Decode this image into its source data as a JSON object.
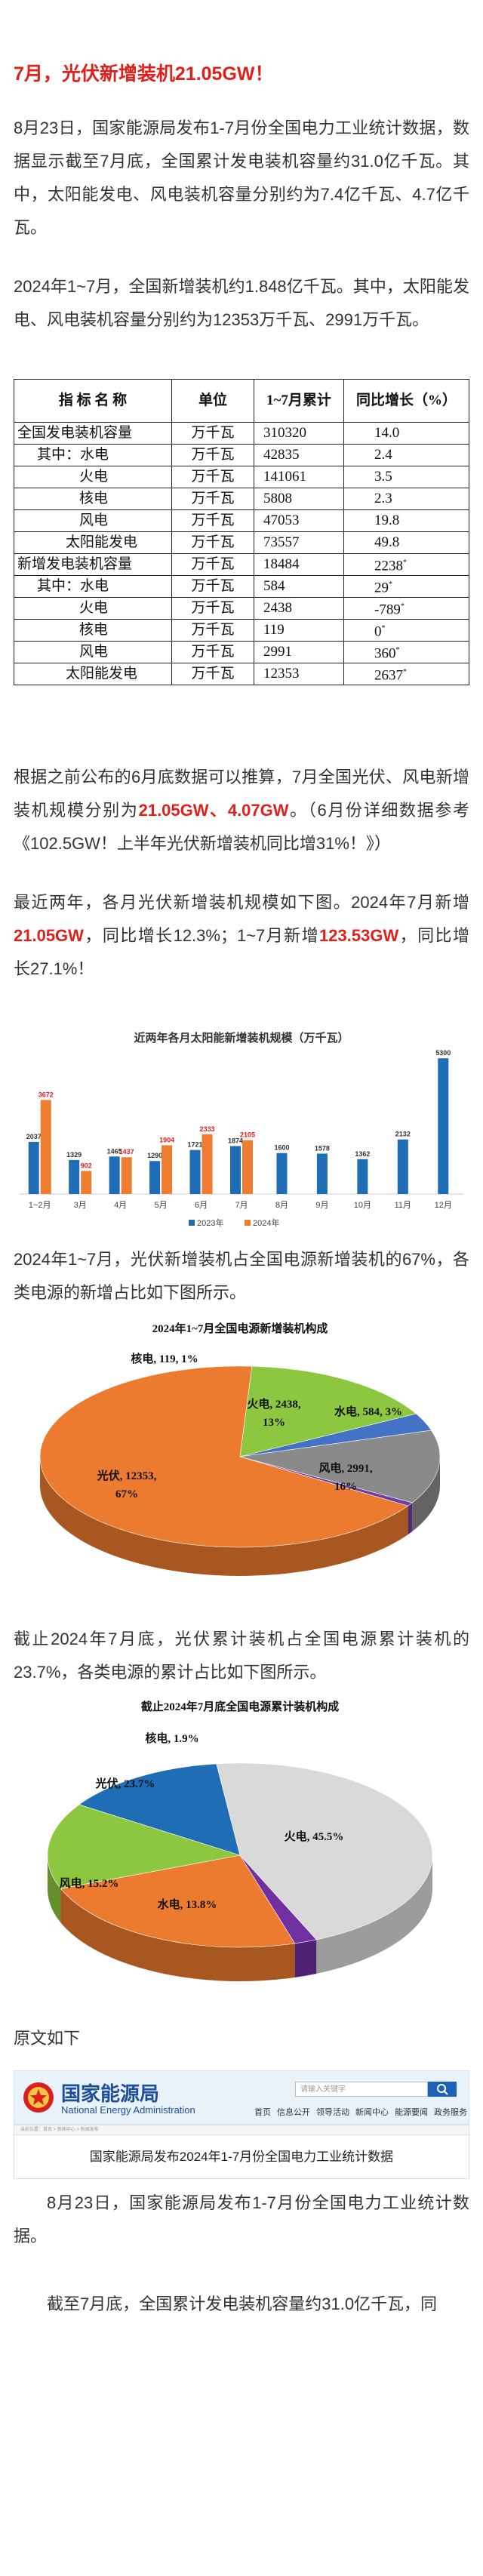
{
  "title": "7月，光伏新增装机21.05GW！",
  "para1": "8月23日，国家能源局发布1-7月份全国电力工业统计数据，数据显示截至7月底，全国累计发电装机容量约31.0亿千瓦。其中，太阳能发电、风电装机容量分别约为7.4亿千瓦、4.7亿千瓦。",
  "para2": "2024年1~7月，全国新增装机约1.848亿千瓦。其中，太阳能发电、风电装机容量分别约为12353万千瓦、2991万千瓦。",
  "table": {
    "headers": [
      "指 标 名 称",
      "单位",
      "1~7月累计",
      "同比增长（%）"
    ],
    "rows": [
      {
        "name": "全国发电装机容量",
        "unit": "万千瓦",
        "value": "310320",
        "growth": "14.0",
        "sup": ""
      },
      {
        "name": "其中：水电",
        "unit": "万千瓦",
        "value": "42835",
        "growth": "2.4",
        "sup": ""
      },
      {
        "name": "火电",
        "unit": "万千瓦",
        "value": "141061",
        "growth": "3.5",
        "sup": ""
      },
      {
        "name": "核电",
        "unit": "万千瓦",
        "value": "5808",
        "growth": "2.3",
        "sup": ""
      },
      {
        "name": "风电",
        "unit": "万千瓦",
        "value": "47053",
        "growth": "19.8",
        "sup": ""
      },
      {
        "name": "太阳能发电",
        "unit": "万千瓦",
        "value": "73557",
        "growth": "49.8",
        "sup": ""
      },
      {
        "name": "新增发电装机容量",
        "unit": "万千瓦",
        "value": "18484",
        "growth": "2238",
        "sup": "*"
      },
      {
        "name": "其中：水电",
        "unit": "万千瓦",
        "value": "584",
        "growth": "29",
        "sup": "*"
      },
      {
        "name": "火电",
        "unit": "万千瓦",
        "value": "2438",
        "growth": "-789",
        "sup": "*"
      },
      {
        "name": "核电",
        "unit": "万千瓦",
        "value": "119",
        "growth": "0",
        "sup": "*"
      },
      {
        "name": "风电",
        "unit": "万千瓦",
        "value": "2991",
        "growth": "360",
        "sup": "*"
      },
      {
        "name": "太阳能发电",
        "unit": "万千瓦",
        "value": "12353",
        "growth": "2637",
        "sup": "*"
      }
    ]
  },
  "para3": {
    "a": "根据之前公布的6月底数据可以推算，7月全国光伏、风电新增装机规模分别为",
    "b": "21.05GW、4.07GW",
    "c": "。（6月份详细数据参考《102.5GW！上半年光伏新增装机同比增31%！》）"
  },
  "para4": {
    "a": "最近两年，各月光伏新增装机规模如下图。2024年7月新增",
    "b": "21.05GW",
    "c": "，同比增长12.3%；1~7月新增",
    "d": "123.53GW",
    "e": "，同比增长27.1%！"
  },
  "para5": "2024年1~7月，光伏新增装机占全国电源新增装机的67%，各类电源的新增占比如下图所示。",
  "para6": "截止2024年7月底，光伏累计装机占全国电源累计装机的23.7%，各类电源的累计占比如下图所示。",
  "para7": "原文如下",
  "nea": {
    "name_cn": "国家能源局",
    "name_en": "National Energy Administration",
    "search_placeholder": "请输入关键字",
    "nav": [
      "首页",
      "信息公开",
      "领导活动",
      "新闻中心",
      "能源要闻",
      "政务服务"
    ],
    "article_title": "国家能源局发布2024年1-7月份全国电力工业统计数据",
    "breadcrumb": "当前位置：首页 > 新闻中心 > 新闻发布"
  },
  "para8": "8月23日，国家能源局发布1-7月份全国电力工业统计数据。",
  "para9": "截至7月底，全国累计发电装机容量约31.0亿千瓦，同",
  "chart_data": [
    {
      "type": "bar",
      "title": "近两年各月太阳能新增装机规模（万千瓦）",
      "categories": [
        "1~2月",
        "3月",
        "4月",
        "5月",
        "6月",
        "7月",
        "8月",
        "9月",
        "10月",
        "11月",
        "12月"
      ],
      "series": [
        {
          "name": "2023年",
          "color": "#1f6db5",
          "values": [
            2037,
            1329,
            1465,
            1290,
            1721,
            1874,
            1600,
            1578,
            1362,
            2132,
            5300
          ]
        },
        {
          "name": "2024年",
          "color": "#ef7d31",
          "values": [
            3672,
            902,
            1437,
            1904,
            2333,
            2105,
            null,
            null,
            null,
            null,
            null
          ]
        }
      ],
      "ylim": [
        0,
        5600
      ],
      "legend": "bottom"
    },
    {
      "type": "pie",
      "title": "2024年1~7月全国电源新增装机构成",
      "slices": [
        {
          "label": "光伏, 12353, 67%",
          "name": "光伏",
          "value": 12353,
          "color": "#ec7a2f"
        },
        {
          "label": "风电, 2991, 16%",
          "name": "风电",
          "value": 2991,
          "color": "#8dc63f"
        },
        {
          "label": "水电, 584, 3%",
          "name": "水电",
          "value": 584,
          "color": "#4472c4"
        },
        {
          "label": "火电, 2438, 13%",
          "name": "火电",
          "value": 2438,
          "color": "#8a8a8a"
        },
        {
          "label": "核电, 119, 1%",
          "name": "核电",
          "value": 119,
          "color": "#6f3fa0"
        }
      ]
    },
    {
      "type": "pie",
      "title": "截止2024年7月底全国电源累计装机构成",
      "slices": [
        {
          "label": "光伏, 23.7%",
          "name": "光伏",
          "value": 23.7,
          "color": "#ec7a2f"
        },
        {
          "label": "风电, 15.2%",
          "name": "风电",
          "value": 15.2,
          "color": "#8dc63f"
        },
        {
          "label": "水电, 13.8%",
          "name": "水电",
          "value": 13.8,
          "color": "#1f6db5"
        },
        {
          "label": "火电, 45.5%",
          "name": "火电",
          "value": 45.5,
          "color": "#d9d9d9"
        },
        {
          "label": "核电, 1.9%",
          "name": "核电",
          "value": 1.9,
          "color": "#7030a0"
        }
      ]
    }
  ]
}
